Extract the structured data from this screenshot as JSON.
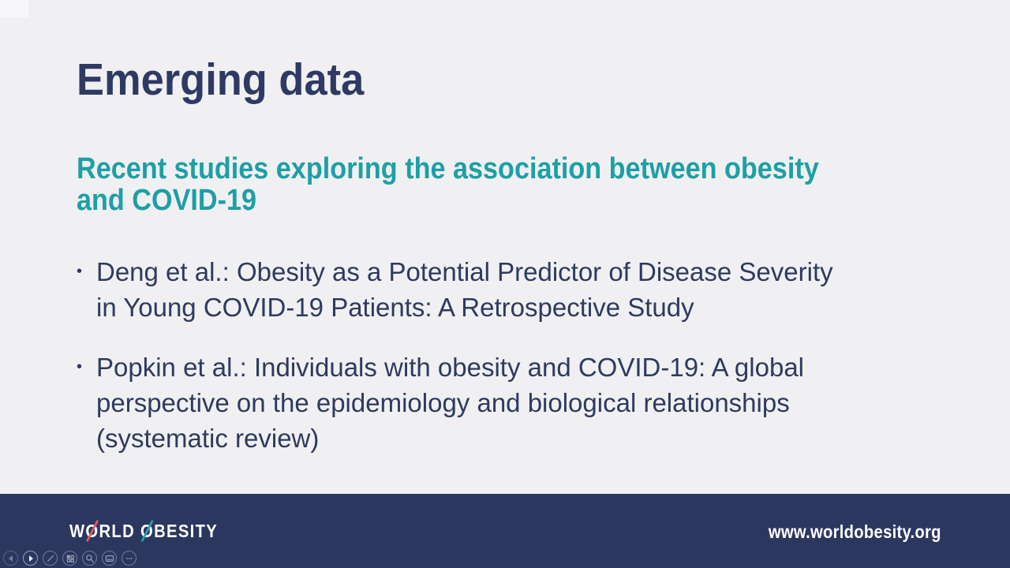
{
  "slide": {
    "title": "Emerging data",
    "subtitle_lines": [
      "Recent studies exploring the association between obesity",
      "and COVID-19"
    ],
    "bullet_char": "•",
    "bullets": [
      {
        "lines": [
          "Deng et al.: Obesity as a Potential Predictor of Disease Severity",
          "in Young COVID-19 Patients: A Retrospective Study"
        ]
      },
      {
        "lines": [
          "Popkin et al.: Individuals with obesity and COVID-19: A global",
          "perspective on the epidemiology and biological relationships",
          "(systematic review)"
        ]
      }
    ]
  },
  "footer": {
    "logo": {
      "wordmark": "WORLD OBESITY",
      "part1": "W",
      "o1": "O",
      "part2": "RLD ",
      "o2": "O",
      "part3": "BESITY"
    },
    "url": "www.worldobesity.org"
  },
  "controls": {
    "items": [
      {
        "icon": "previous-arrow-icon"
      },
      {
        "icon": "play-arrow-icon"
      },
      {
        "icon": "pen-icon"
      },
      {
        "icon": "all-slides-grid-icon"
      },
      {
        "icon": "magnifier-icon"
      },
      {
        "icon": "captions-icon"
      },
      {
        "icon": "more-ellipsis-icon"
      }
    ]
  },
  "colors": {
    "background": "#f0f0f2",
    "title_navy": "#2e3a63",
    "teal_accent": "#1d9fa6",
    "body_navy": "#2e3a5e",
    "footer_navy": "#2c3760",
    "logo_coral_slash": "#e25c5f",
    "logo_teal_slash": "#2aa4a6",
    "text_white": "#ffffff"
  }
}
